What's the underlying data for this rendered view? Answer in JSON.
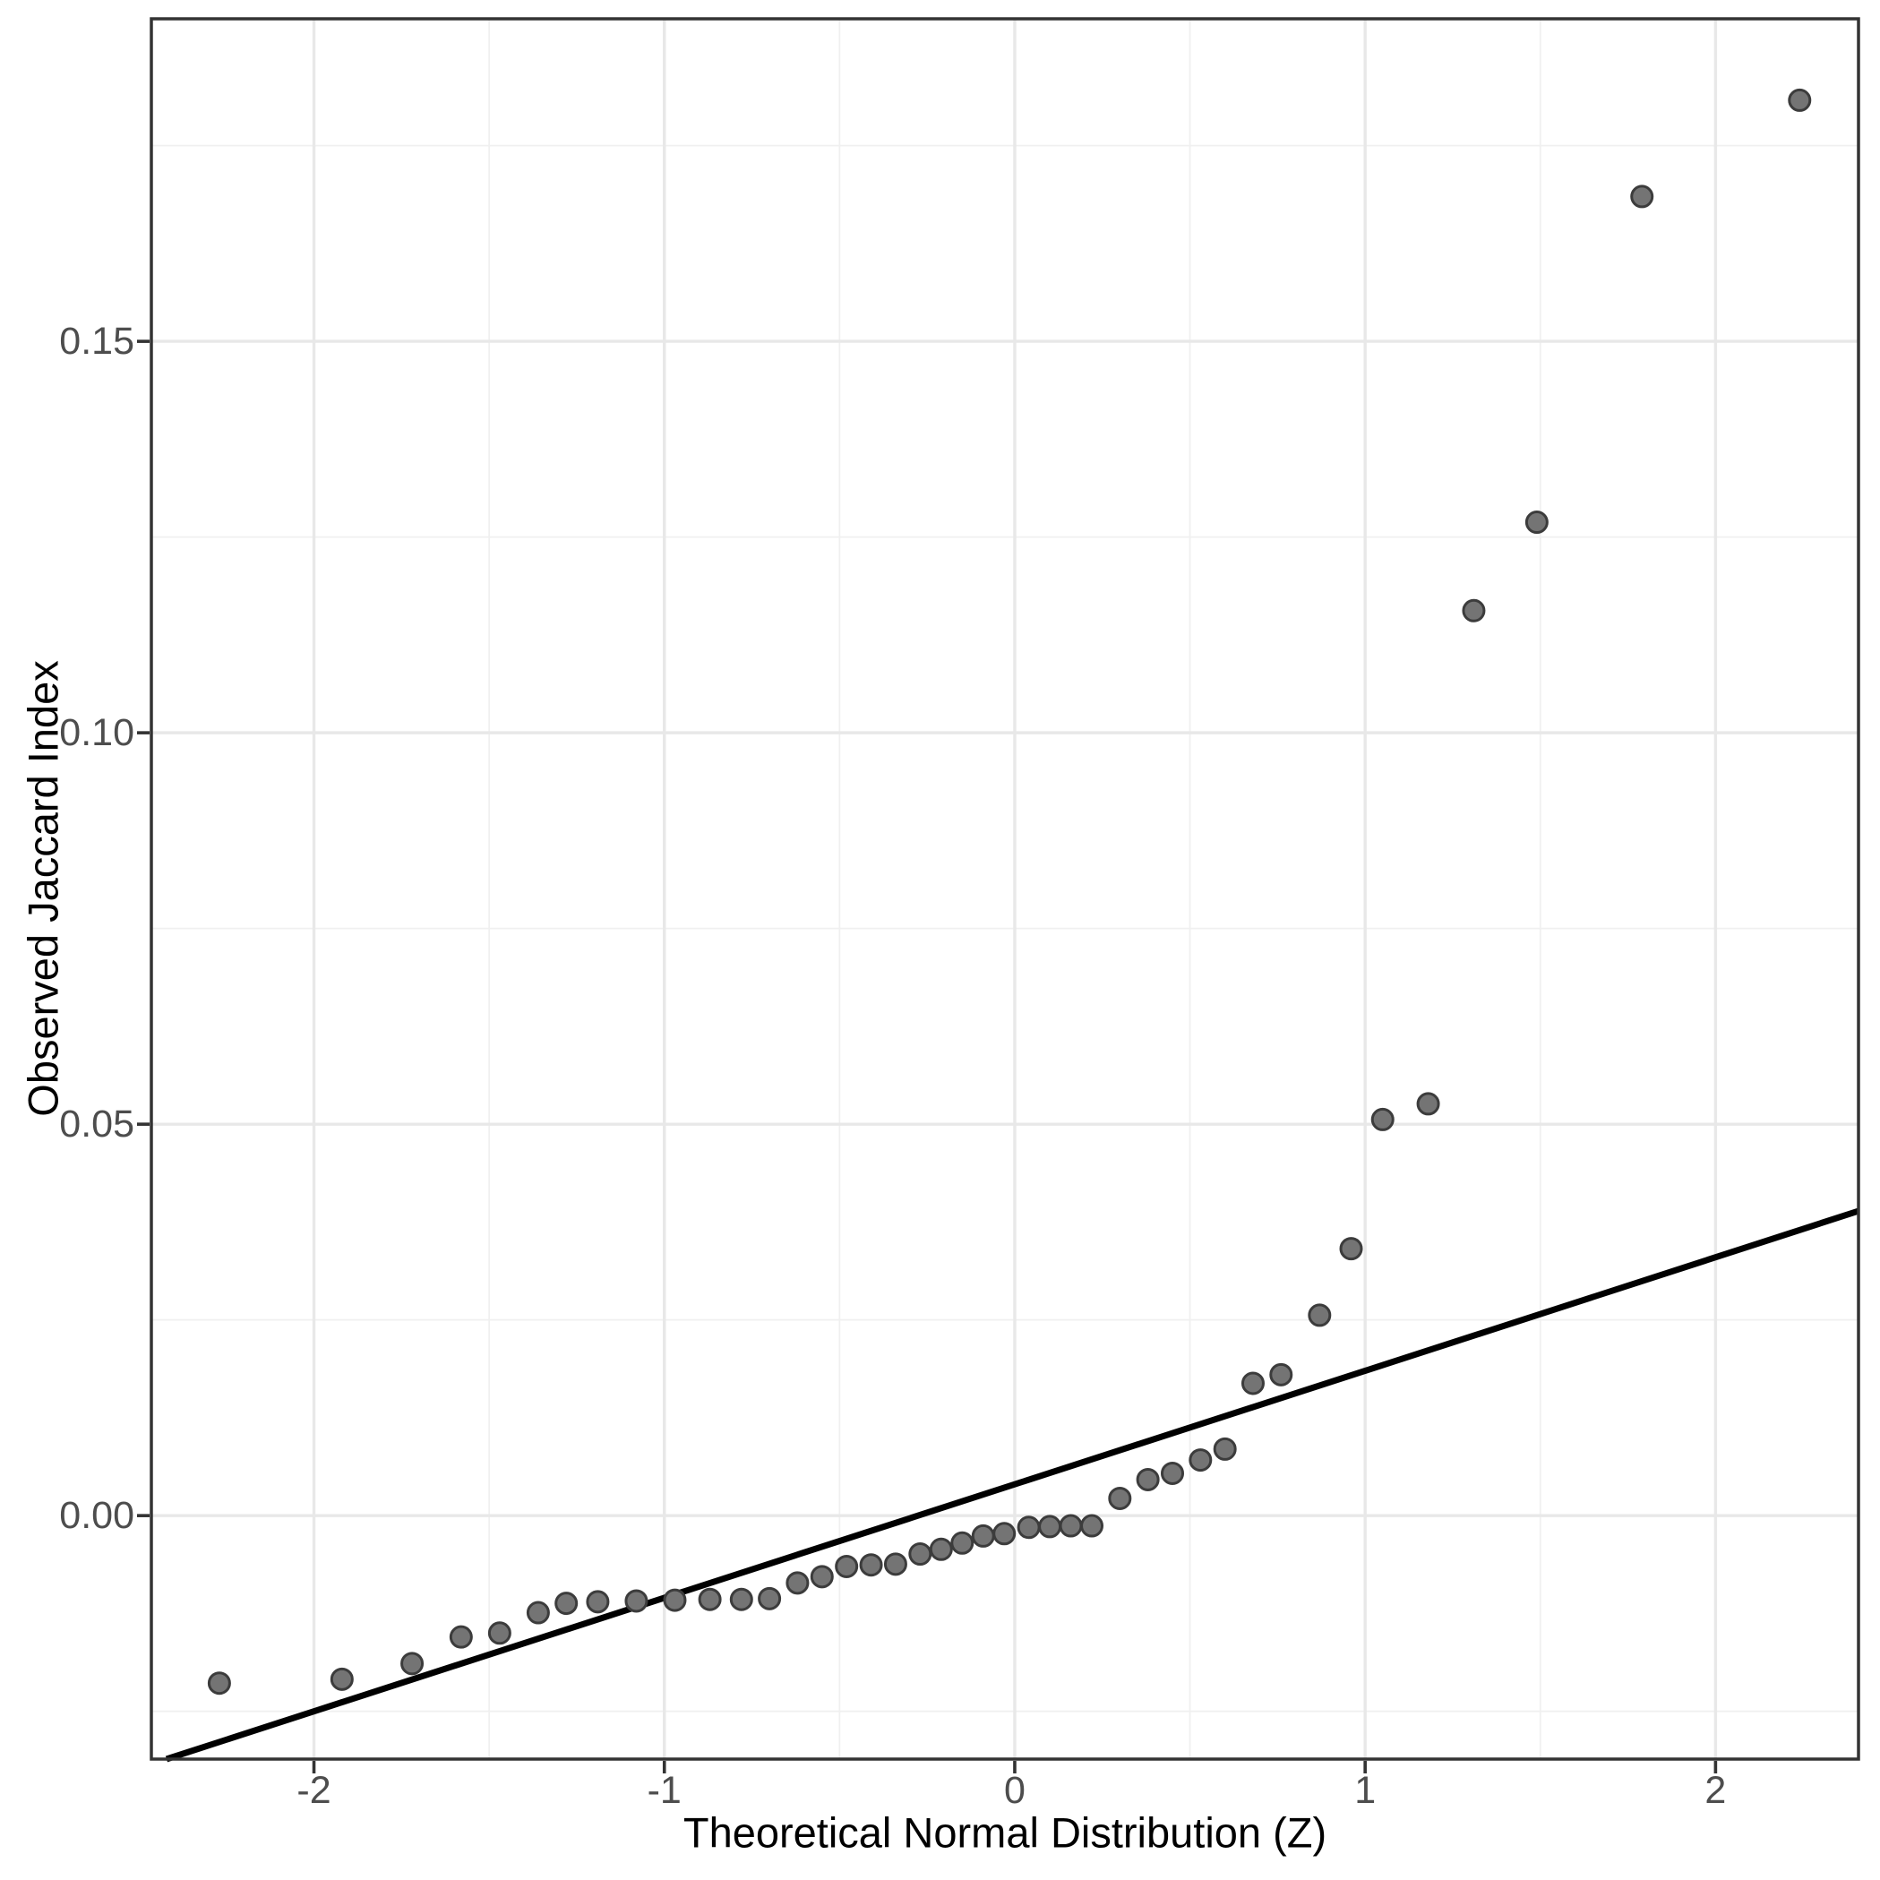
{
  "chart_data": {
    "type": "scatter",
    "title": "",
    "xlabel": "Theoretical Normal Distribution (Z)",
    "ylabel": "Observed Jaccard Index",
    "x_tick_values": [
      -2,
      -1,
      0,
      1,
      2
    ],
    "x_tick_labels": [
      "-2",
      "-1",
      "0",
      "1",
      "2"
    ],
    "x_minor_values": [
      -1.5,
      -0.5,
      0.5,
      1.5
    ],
    "y_tick_values": [
      0.0,
      0.05,
      0.1,
      0.15
    ],
    "y_tick_labels": [
      "0.00",
      "0.05",
      "0.10",
      "0.15"
    ],
    "y_minor_values": [
      -0.025,
      0.025,
      0.075,
      0.125,
      0.175
    ],
    "xlim": [
      -2.464,
      2.408
    ],
    "ylim": [
      -0.0311,
      0.1912
    ],
    "grid": "major+minor",
    "legend": "none",
    "points": [
      [
        -2.27,
        -0.0214
      ],
      [
        -1.92,
        -0.0209
      ],
      [
        -1.72,
        -0.0189
      ],
      [
        -1.58,
        -0.0155
      ],
      [
        -1.47,
        -0.015
      ],
      [
        -1.36,
        -0.0124
      ],
      [
        -1.28,
        -0.0112
      ],
      [
        -1.19,
        -0.011
      ],
      [
        -1.08,
        -0.0109
      ],
      [
        -0.97,
        -0.0108
      ],
      [
        -0.87,
        -0.0107
      ],
      [
        -0.78,
        -0.0107
      ],
      [
        -0.7,
        -0.0106
      ],
      [
        -0.62,
        -0.0086
      ],
      [
        -0.55,
        -0.0078
      ],
      [
        -0.48,
        -0.0065
      ],
      [
        -0.41,
        -0.0063
      ],
      [
        -0.34,
        -0.0062
      ],
      [
        -0.27,
        -0.0049
      ],
      [
        -0.21,
        -0.0043
      ],
      [
        -0.15,
        -0.0035
      ],
      [
        -0.09,
        -0.0026
      ],
      [
        -0.03,
        -0.0023
      ],
      [
        0.04,
        -0.0015
      ],
      [
        0.1,
        -0.0014
      ],
      [
        0.16,
        -0.0013
      ],
      [
        0.22,
        -0.0013
      ],
      [
        0.3,
        0.0022
      ],
      [
        0.38,
        0.0046
      ],
      [
        0.45,
        0.0054
      ],
      [
        0.53,
        0.0071
      ],
      [
        0.6,
        0.0085
      ],
      [
        0.68,
        0.0169
      ],
      [
        0.76,
        0.018
      ],
      [
        0.87,
        0.0256
      ],
      [
        0.96,
        0.0341
      ],
      [
        1.05,
        0.0506
      ],
      [
        1.18,
        0.0526
      ],
      [
        1.31,
        0.1156
      ],
      [
        1.49,
        0.1269
      ],
      [
        1.79,
        0.1685
      ],
      [
        2.24,
        0.1808
      ]
    ],
    "ref_line": {
      "intercept": 0.004,
      "slope": 0.0145
    },
    "colors": {
      "background": "#ffffff",
      "panel_background": "#ffffff",
      "panel_border": "#333333",
      "grid_major": "#e8e8e8",
      "grid_minor": "#f0f0f0",
      "point_fill": "#747474",
      "point_stroke": "#3c3c3c",
      "ref_line": "#000000",
      "tick_mark": "#333333",
      "tick_label": "#4d4d4d",
      "axis_title": "#000000"
    }
  }
}
